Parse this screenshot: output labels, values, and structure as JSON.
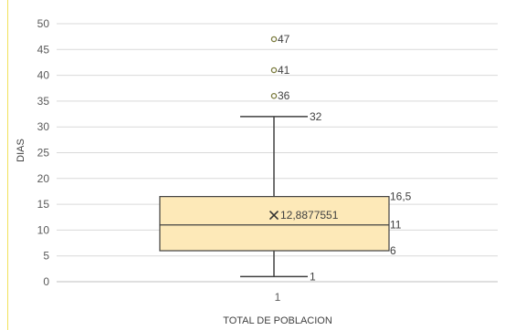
{
  "chart_data": {
    "type": "box",
    "xlabel": "TOTAL DE POBLACION",
    "ylabel": "DIAS",
    "categories": [
      "1"
    ],
    "ylim": [
      0,
      50
    ],
    "yticks": [
      "0",
      "5",
      "10",
      "15",
      "20",
      "25",
      "30",
      "35",
      "40",
      "45",
      "50"
    ],
    "grid": true,
    "box": {
      "min": 1,
      "q1": 6,
      "median": 11,
      "q3": 16.5,
      "max": 32,
      "mean": 12.8877551,
      "outliers": [
        36,
        41,
        47
      ]
    },
    "labels": {
      "min": "1",
      "q1": "6",
      "median": "11",
      "q3": "16,5",
      "max": "32",
      "mean": "12,8877551",
      "outliers": [
        "36",
        "41",
        "47"
      ]
    },
    "colors": {
      "box_fill": "#fde9b8",
      "box_stroke": "#404040",
      "grid": "#d9d9d9",
      "outlier": "#7a7a3c"
    }
  }
}
